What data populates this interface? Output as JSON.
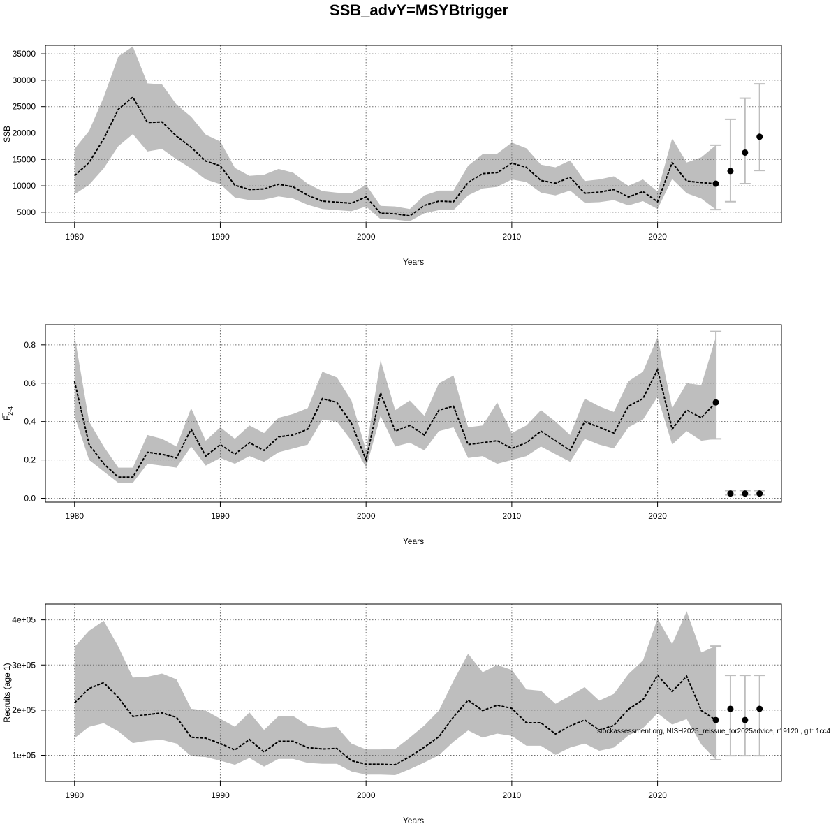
{
  "title": "SSB_advY=MSYBtrigger",
  "credit": "stockassessment.org, NISH2025_reissue_for2025advice, r19120 , git: 1cc4",
  "colors": {
    "band": "#bebebe",
    "line": "#000000",
    "error_bar": "#bebebe",
    "grid": "#6e6e6e",
    "frame": "#000000"
  },
  "chart_data": [
    {
      "type": "line",
      "id": "ssb",
      "xlabel": "Years",
      "ylabel": "SSB",
      "ylabel_sub": "",
      "xlim": [
        1978,
        2028.5
      ],
      "ylim": [
        3000,
        36600
      ],
      "xticks": [
        1980,
        1990,
        2000,
        2010,
        2020
      ],
      "xtick_labels": [
        "1980",
        "1990",
        "2000",
        "2010",
        "2020"
      ],
      "yticks": [
        5000,
        10000,
        15000,
        20000,
        25000,
        30000,
        35000
      ],
      "ytick_labels": [
        "5000",
        "10000",
        "15000",
        "20000",
        "25000",
        "30000",
        "35000"
      ],
      "grid": true,
      "x": [
        1980,
        1981,
        1982,
        1983,
        1984,
        1985,
        1986,
        1987,
        1988,
        1989,
        1990,
        1991,
        1992,
        1993,
        1994,
        1995,
        1996,
        1997,
        1998,
        1999,
        2000,
        2001,
        2002,
        2003,
        2004,
        2005,
        2006,
        2007,
        2008,
        2009,
        2010,
        2011,
        2012,
        2013,
        2014,
        2015,
        2016,
        2017,
        2018,
        2019,
        2020,
        2021,
        2022,
        2023,
        2024
      ],
      "estimate": [
        11900,
        14400,
        18900,
        24500,
        26800,
        22000,
        22100,
        19400,
        17300,
        14700,
        13800,
        10100,
        9300,
        9400,
        10300,
        9800,
        8200,
        7100,
        6900,
        6700,
        7900,
        4800,
        4700,
        4300,
        6300,
        7100,
        7000,
        10600,
        12300,
        12500,
        14300,
        13500,
        11000,
        10500,
        11600,
        8600,
        8800,
        9300,
        7900,
        8900,
        7000,
        14400,
        10900,
        10600,
        10400
      ],
      "lower": [
        8400,
        10200,
        13300,
        17500,
        19800,
        16500,
        17000,
        15000,
        13300,
        11200,
        10300,
        7800,
        7300,
        7400,
        8000,
        7600,
        6400,
        5600,
        5400,
        5200,
        6100,
        3700,
        3600,
        3300,
        4800,
        5400,
        5400,
        8200,
        9500,
        9800,
        11200,
        10700,
        8700,
        8200,
        9100,
        6800,
        6900,
        7300,
        6300,
        7100,
        5600,
        11300,
        8600,
        7600,
        5500
      ],
      "upper": [
        17000,
        20400,
        26800,
        34500,
        36400,
        29400,
        29200,
        25400,
        23100,
        19700,
        18400,
        13400,
        11900,
        12100,
        13200,
        12500,
        10400,
        9000,
        8700,
        8600,
        10200,
        6200,
        6100,
        5600,
        8200,
        9100,
        9100,
        13800,
        16000,
        16100,
        18200,
        17100,
        14000,
        13500,
        14800,
        10900,
        11200,
        11800,
        10000,
        11200,
        8900,
        19000,
        14400,
        15400,
        17700
      ],
      "forecast": [
        {
          "x": 2024,
          "value": 10400,
          "lower": 5500,
          "upper": 17700
        },
        {
          "x": 2025,
          "value": 12800,
          "lower": 7000,
          "upper": 22600
        },
        {
          "x": 2026,
          "value": 16300,
          "lower": 10400,
          "upper": 26600
        },
        {
          "x": 2027,
          "value": 19300,
          "lower": 12900,
          "upper": 29300
        }
      ]
    },
    {
      "type": "line",
      "id": "fbar",
      "xlabel": "Years",
      "ylabel": "F",
      "ylabel_sub": "2-4",
      "xlim": [
        1978,
        2028.5
      ],
      "ylim": [
        -0.02,
        0.905
      ],
      "xticks": [
        1980,
        1990,
        2000,
        2010,
        2020
      ],
      "xtick_labels": [
        "1980",
        "1990",
        "2000",
        "2010",
        "2020"
      ],
      "yticks": [
        0.0,
        0.2,
        0.4,
        0.6,
        0.8
      ],
      "ytick_labels": [
        "0.0",
        "0.2",
        "0.4",
        "0.6",
        "0.8"
      ],
      "grid": true,
      "x": [
        1980,
        1981,
        1982,
        1983,
        1984,
        1985,
        1986,
        1987,
        1988,
        1989,
        1990,
        1991,
        1992,
        1993,
        1994,
        1995,
        1996,
        1997,
        1998,
        1999,
        2000,
        2001,
        2002,
        2003,
        2004,
        2005,
        2006,
        2007,
        2008,
        2009,
        2010,
        2011,
        2012,
        2013,
        2014,
        2015,
        2016,
        2017,
        2018,
        2019,
        2020,
        2021,
        2022,
        2023,
        2024
      ],
      "estimate": [
        0.61,
        0.28,
        0.18,
        0.11,
        0.11,
        0.24,
        0.23,
        0.21,
        0.36,
        0.22,
        0.28,
        0.23,
        0.29,
        0.25,
        0.32,
        0.33,
        0.36,
        0.52,
        0.5,
        0.39,
        0.2,
        0.55,
        0.35,
        0.38,
        0.33,
        0.46,
        0.48,
        0.28,
        0.29,
        0.3,
        0.26,
        0.29,
        0.35,
        0.3,
        0.25,
        0.4,
        0.37,
        0.34,
        0.48,
        0.52,
        0.67,
        0.36,
        0.46,
        0.42,
        0.5
      ],
      "lower": [
        0.43,
        0.2,
        0.14,
        0.08,
        0.08,
        0.18,
        0.17,
        0.16,
        0.27,
        0.17,
        0.21,
        0.18,
        0.22,
        0.19,
        0.24,
        0.26,
        0.28,
        0.41,
        0.4,
        0.3,
        0.16,
        0.43,
        0.27,
        0.29,
        0.25,
        0.35,
        0.37,
        0.21,
        0.22,
        0.18,
        0.2,
        0.22,
        0.27,
        0.23,
        0.19,
        0.31,
        0.28,
        0.26,
        0.37,
        0.41,
        0.53,
        0.28,
        0.35,
        0.3,
        0.31
      ],
      "upper": [
        0.85,
        0.4,
        0.27,
        0.16,
        0.16,
        0.33,
        0.31,
        0.27,
        0.47,
        0.3,
        0.37,
        0.31,
        0.38,
        0.34,
        0.42,
        0.44,
        0.47,
        0.66,
        0.63,
        0.51,
        0.25,
        0.72,
        0.46,
        0.51,
        0.43,
        0.6,
        0.64,
        0.37,
        0.38,
        0.5,
        0.34,
        0.38,
        0.46,
        0.4,
        0.33,
        0.52,
        0.48,
        0.45,
        0.61,
        0.66,
        0.84,
        0.47,
        0.6,
        0.59,
        0.84
      ],
      "forecast": [
        {
          "x": 2024,
          "value": 0.5,
          "lower": 0.31,
          "upper": 0.87
        },
        {
          "x": 2025,
          "value": 0.025,
          "lower": 0.018,
          "upper": 0.04
        },
        {
          "x": 2026,
          "value": 0.025,
          "lower": 0.018,
          "upper": 0.04
        },
        {
          "x": 2027,
          "value": 0.025,
          "lower": 0.018,
          "upper": 0.04
        }
      ]
    },
    {
      "type": "line",
      "id": "recruits",
      "xlabel": "Years",
      "ylabel": "Recruits (age 1)",
      "ylabel_sub": "",
      "xlim": [
        1978,
        2028.5
      ],
      "ylim": [
        42000,
        435000
      ],
      "xticks": [
        1980,
        1990,
        2000,
        2010,
        2020
      ],
      "xtick_labels": [
        "1980",
        "1990",
        "2000",
        "2010",
        "2020"
      ],
      "yticks": [
        100000,
        200000,
        300000,
        400000
      ],
      "ytick_labels": [
        "1e+05",
        "2e+05",
        "3e+05",
        "4e+05"
      ],
      "grid": true,
      "x": [
        1980,
        1981,
        1982,
        1983,
        1984,
        1985,
        1986,
        1987,
        1988,
        1989,
        1990,
        1991,
        1992,
        1993,
        1994,
        1995,
        1996,
        1997,
        1998,
        1999,
        2000,
        2001,
        2002,
        2003,
        2004,
        2005,
        2006,
        2007,
        2008,
        2009,
        2010,
        2011,
        2012,
        2013,
        2014,
        2015,
        2016,
        2017,
        2018,
        2019,
        2020,
        2021,
        2022,
        2023,
        2024
      ],
      "estimate": [
        216000,
        248000,
        261000,
        228000,
        186000,
        190000,
        194000,
        184000,
        140000,
        138000,
        126000,
        112000,
        135000,
        107000,
        131000,
        131000,
        117000,
        114000,
        115000,
        88000,
        80000,
        80000,
        79000,
        97000,
        118000,
        141000,
        185000,
        222000,
        199000,
        211000,
        204000,
        172000,
        172000,
        147000,
        165000,
        178000,
        156000,
        166000,
        202000,
        223000,
        277000,
        241000,
        275000,
        199000,
        178000
      ],
      "lower": [
        138000,
        163000,
        171000,
        153000,
        127000,
        132000,
        134000,
        126000,
        98000,
        96000,
        88000,
        79000,
        94000,
        75000,
        92000,
        92000,
        83000,
        81000,
        81000,
        64000,
        57000,
        57000,
        56000,
        69000,
        84000,
        100000,
        130000,
        155000,
        139000,
        148000,
        143000,
        121000,
        121000,
        101000,
        117000,
        126000,
        110000,
        117000,
        144000,
        160000,
        193000,
        168000,
        180000,
        124000,
        90000
      ],
      "upper": [
        340000,
        376000,
        398000,
        341000,
        272000,
        274000,
        281000,
        268000,
        203000,
        199000,
        181000,
        163000,
        195000,
        156000,
        187000,
        187000,
        166000,
        161000,
        163000,
        126000,
        113000,
        113000,
        114000,
        139000,
        166000,
        199000,
        265000,
        325000,
        284000,
        300000,
        289000,
        246000,
        243000,
        214000,
        232000,
        251000,
        221000,
        236000,
        280000,
        310000,
        403000,
        346000,
        419000,
        328000,
        342000
      ],
      "forecast": [
        {
          "x": 2024,
          "value": 178000,
          "lower": 90000,
          "upper": 342000
        },
        {
          "x": 2025,
          "value": 203000,
          "lower": 99000,
          "upper": 277000
        },
        {
          "x": 2026,
          "value": 178000,
          "lower": 99000,
          "upper": 277000
        },
        {
          "x": 2027,
          "value": 203000,
          "lower": 99000,
          "upper": 277000
        }
      ]
    }
  ]
}
